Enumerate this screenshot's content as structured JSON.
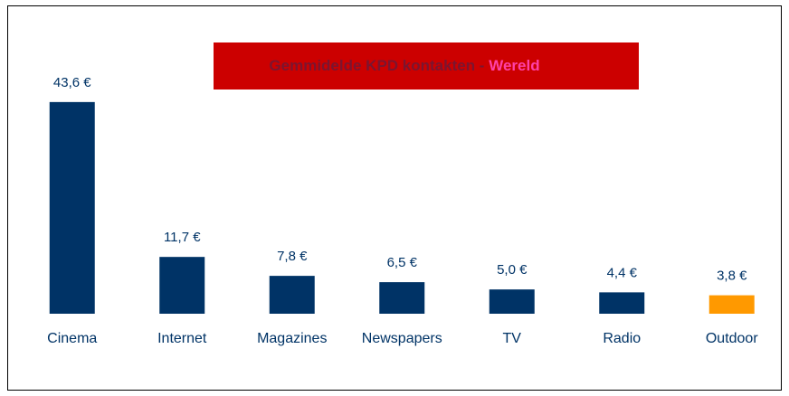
{
  "chart_data": {
    "type": "bar",
    "title_parts": [
      "Gemmidelde KPD kontakten -",
      "Wereld"
    ],
    "title_colors": [
      "#7a1530",
      "#ff40a8"
    ],
    "title_box_color": "#cc0000",
    "categories": [
      "Cinema",
      "Internet",
      "Magazines",
      "Newspapers",
      "TV",
      "Radio",
      "Outdoor"
    ],
    "values": [
      43.6,
      11.7,
      7.8,
      6.5,
      5.0,
      4.4,
      3.8
    ],
    "value_labels": [
      "43,6 €",
      "11,7 €",
      "7,8 €",
      "6,5 €",
      "5,0 €",
      "4,4 €",
      "3,8 €"
    ],
    "colors": [
      "#003366",
      "#003366",
      "#003366",
      "#003366",
      "#003366",
      "#003366",
      "#ff9900"
    ],
    "ylim": [
      0,
      50
    ]
  }
}
